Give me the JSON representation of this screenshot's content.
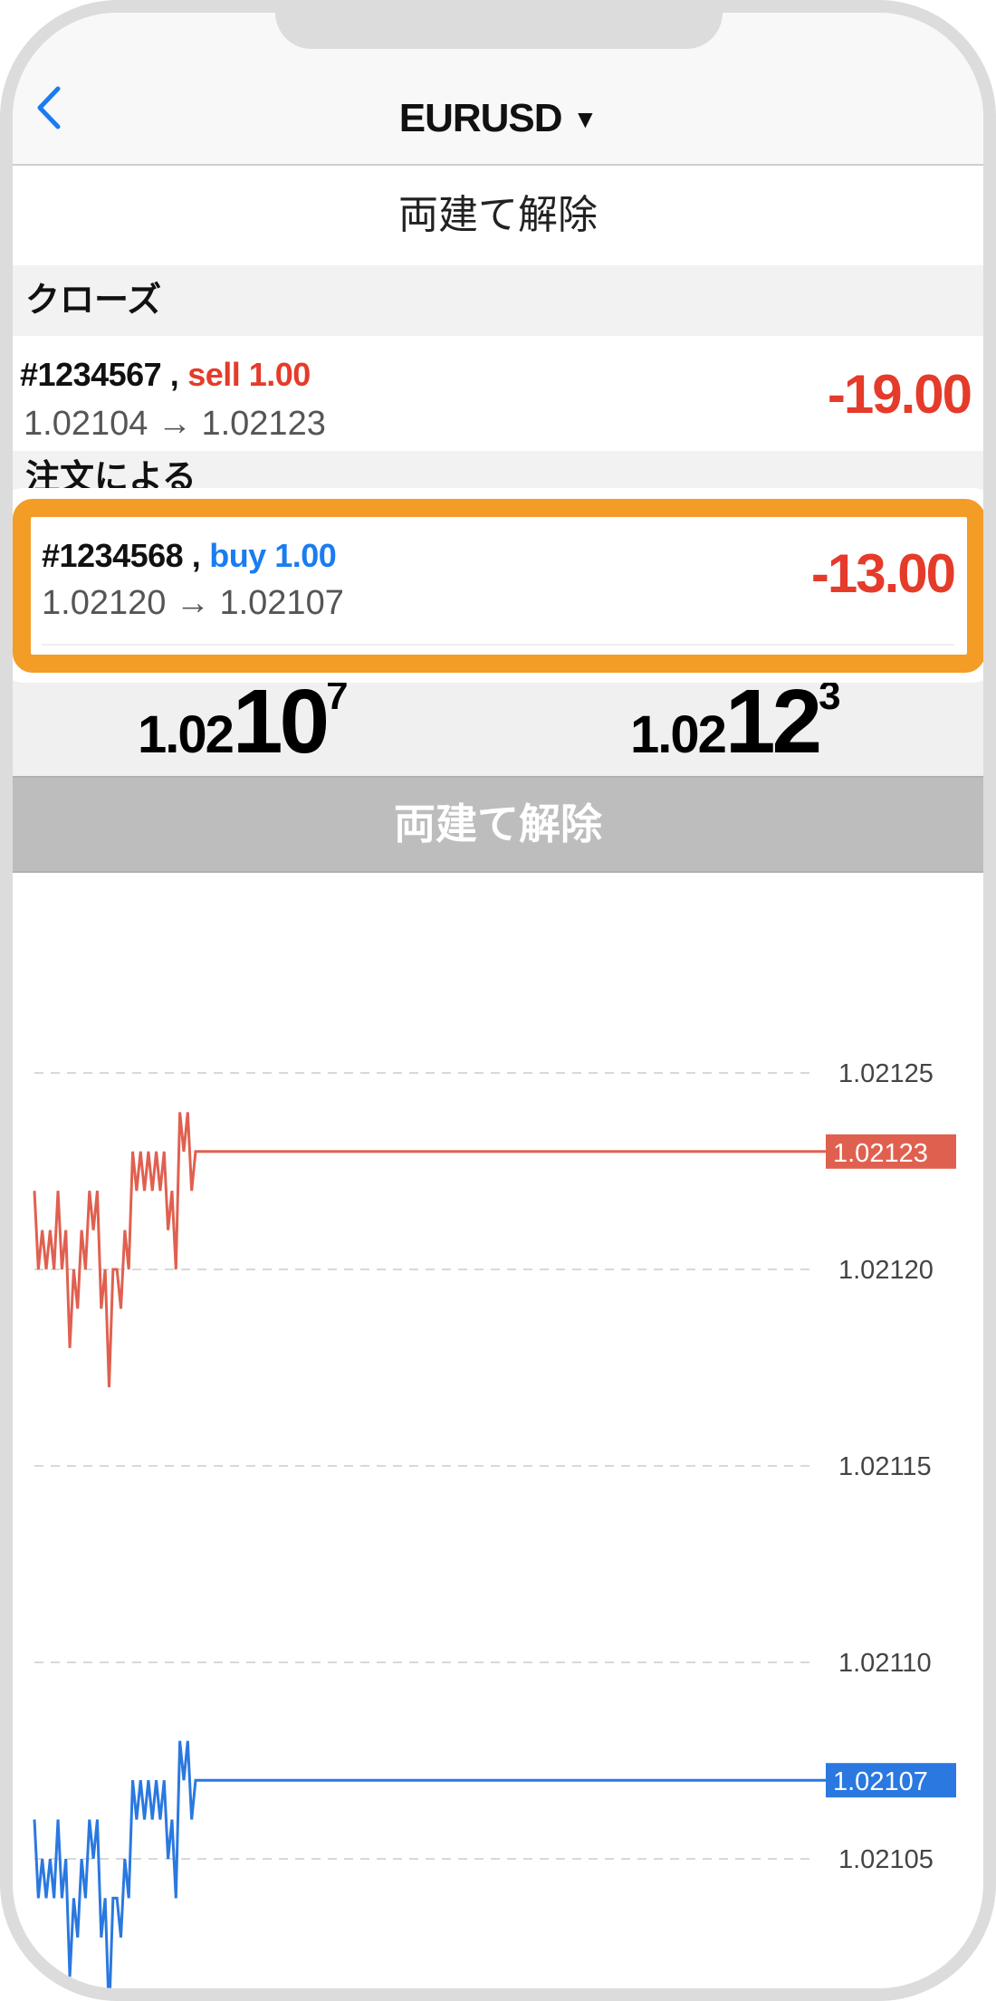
{
  "header": {
    "title": "EURUSD",
    "caret": "▼"
  },
  "page_title": "両建て解除",
  "sections": [
    {
      "label": "クローズ"
    },
    {
      "label": "注文による"
    }
  ],
  "positions": [
    {
      "ticket": "#1234567",
      "sep": ",",
      "side": "sell 1.00",
      "side_color": "#e53b2a",
      "prices": "1.02104 → 1.02123",
      "pl": "-19.00"
    },
    {
      "ticket": "#1234568",
      "sep": ",",
      "side": "buy 1.00",
      "side_color": "#1a7cf0",
      "prices": "1.02120 → 1.02107",
      "pl": "-13.00"
    }
  ],
  "quotes": {
    "bid": {
      "prefix": "1.02",
      "big": "10",
      "sup": "7"
    },
    "ask": {
      "prefix": "1.02",
      "big": "12",
      "sup": "3"
    }
  },
  "button": {
    "label": "両建て解除"
  },
  "highlight_color": "#f39c26",
  "chart_data": {
    "type": "line",
    "y_ticks": [
      "1.02125",
      "1.02120",
      "1.02115",
      "1.02110",
      "1.02105"
    ],
    "grid": true,
    "series": [
      {
        "color": "#e06050",
        "last_label": "1.02123",
        "values": [
          1.02122,
          1.0212,
          1.02121,
          1.0212,
          1.02121,
          1.0212,
          1.02122,
          1.0212,
          1.02121,
          1.02118,
          1.0212,
          1.02119,
          1.02121,
          1.0212,
          1.02122,
          1.02121,
          1.02122,
          1.02119,
          1.0212,
          1.02117,
          1.0212,
          1.0212,
          1.02119,
          1.02121,
          1.0212,
          1.02123,
          1.02122,
          1.02123,
          1.02122,
          1.02123,
          1.02122,
          1.02123,
          1.02122,
          1.02123,
          1.02121,
          1.02122,
          1.0212,
          1.02124,
          1.02123,
          1.02124,
          1.02122,
          1.02123
        ]
      },
      {
        "color": "#2a78e0",
        "last_label": "1.02107",
        "values": [
          1.02106,
          1.02104,
          1.02105,
          1.02104,
          1.02105,
          1.02104,
          1.02106,
          1.02104,
          1.02105,
          1.02102,
          1.02104,
          1.02103,
          1.02105,
          1.02104,
          1.02106,
          1.02105,
          1.02106,
          1.02103,
          1.02104,
          1.02101,
          1.02104,
          1.02104,
          1.02103,
          1.02105,
          1.02104,
          1.02107,
          1.02106,
          1.02107,
          1.02106,
          1.02107,
          1.02106,
          1.02107,
          1.02106,
          1.02107,
          1.02105,
          1.02106,
          1.02104,
          1.02108,
          1.02107,
          1.02108,
          1.02106,
          1.02107
        ]
      }
    ]
  }
}
